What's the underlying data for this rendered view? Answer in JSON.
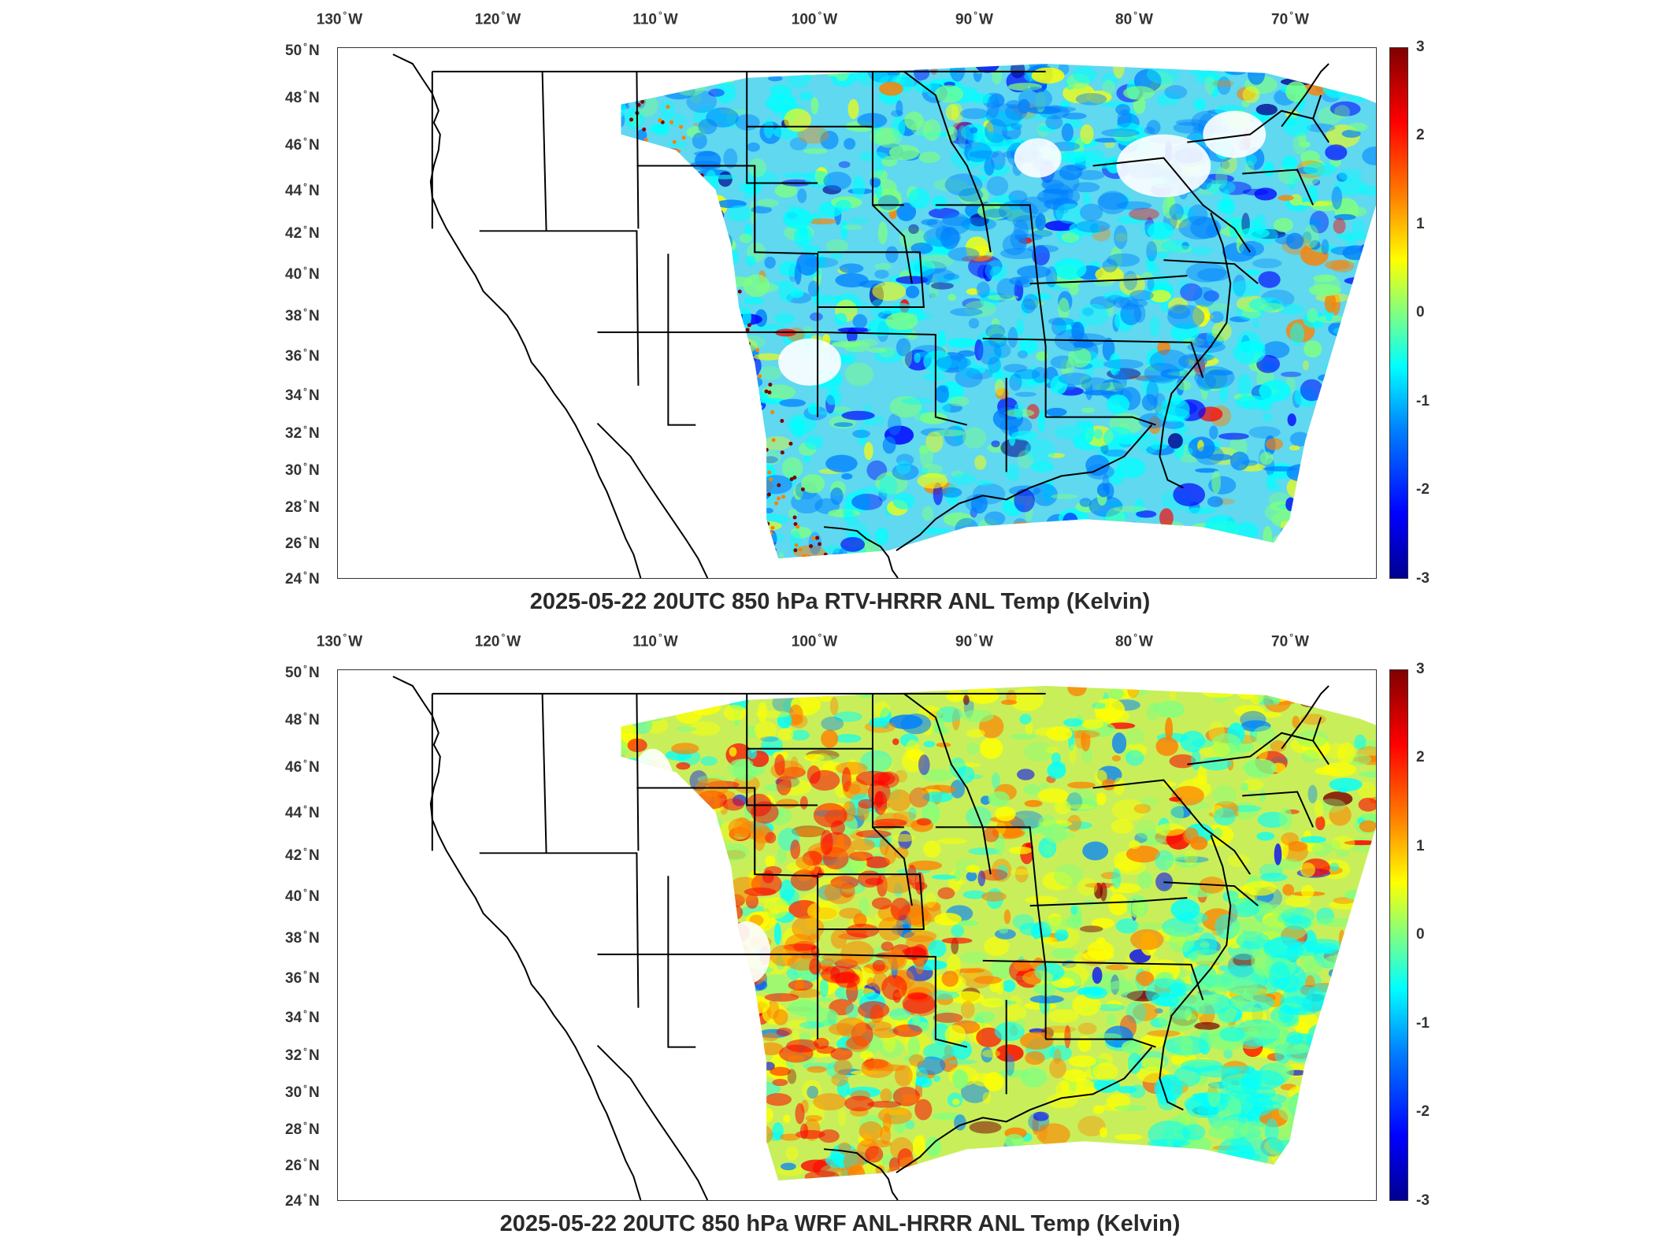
{
  "panels": [
    {
      "title": "2025-05-22 20UTC 850 hPa RTV-HRRR ANL Temp (Kelvin)",
      "field_character": "mostly negative differences (blue/cyan) over central & eastern US, scattered red dots along western edge",
      "colorbar": {
        "min": -3,
        "max": 3,
        "ticks": [
          "3",
          "2",
          "1",
          "0",
          "-1",
          "-2",
          "-3"
        ]
      }
    },
    {
      "title": "2025-05-22 20UTC 850 hPa WRF ANL-HRRR ANL Temp (Kelvin)",
      "field_character": "mostly positive differences (yellow/orange/red) over Great Plains and southwest, cyan over Atlantic",
      "colorbar": {
        "min": -3,
        "max": 3,
        "ticks": [
          "3",
          "2",
          "1",
          "0",
          "-1",
          "-2",
          "-3"
        ]
      }
    }
  ],
  "lon_axis": [
    {
      "deg": "130",
      "hem": "W"
    },
    {
      "deg": "120",
      "hem": "W"
    },
    {
      "deg": "110",
      "hem": "W"
    },
    {
      "deg": "100",
      "hem": "W"
    },
    {
      "deg": "90",
      "hem": "W"
    },
    {
      "deg": "80",
      "hem": "W"
    },
    {
      "deg": "70",
      "hem": "W"
    }
  ],
  "lat_axis": [
    {
      "deg": "50",
      "hem": "N"
    },
    {
      "deg": "48",
      "hem": "N"
    },
    {
      "deg": "46",
      "hem": "N"
    },
    {
      "deg": "44",
      "hem": "N"
    },
    {
      "deg": "42",
      "hem": "N"
    },
    {
      "deg": "40",
      "hem": "N"
    },
    {
      "deg": "38",
      "hem": "N"
    },
    {
      "deg": "36",
      "hem": "N"
    },
    {
      "deg": "34",
      "hem": "N"
    },
    {
      "deg": "32",
      "hem": "N"
    },
    {
      "deg": "30",
      "hem": "N"
    },
    {
      "deg": "28",
      "hem": "N"
    },
    {
      "deg": "26",
      "hem": "N"
    },
    {
      "deg": "24",
      "hem": "N"
    }
  ],
  "colors": {
    "colormap": [
      "#00008f",
      "#0000ff",
      "#0080ff",
      "#00ffff",
      "#80ff80",
      "#ffff00",
      "#ff8000",
      "#ff0000",
      "#800000"
    ],
    "border": "#000000"
  }
}
